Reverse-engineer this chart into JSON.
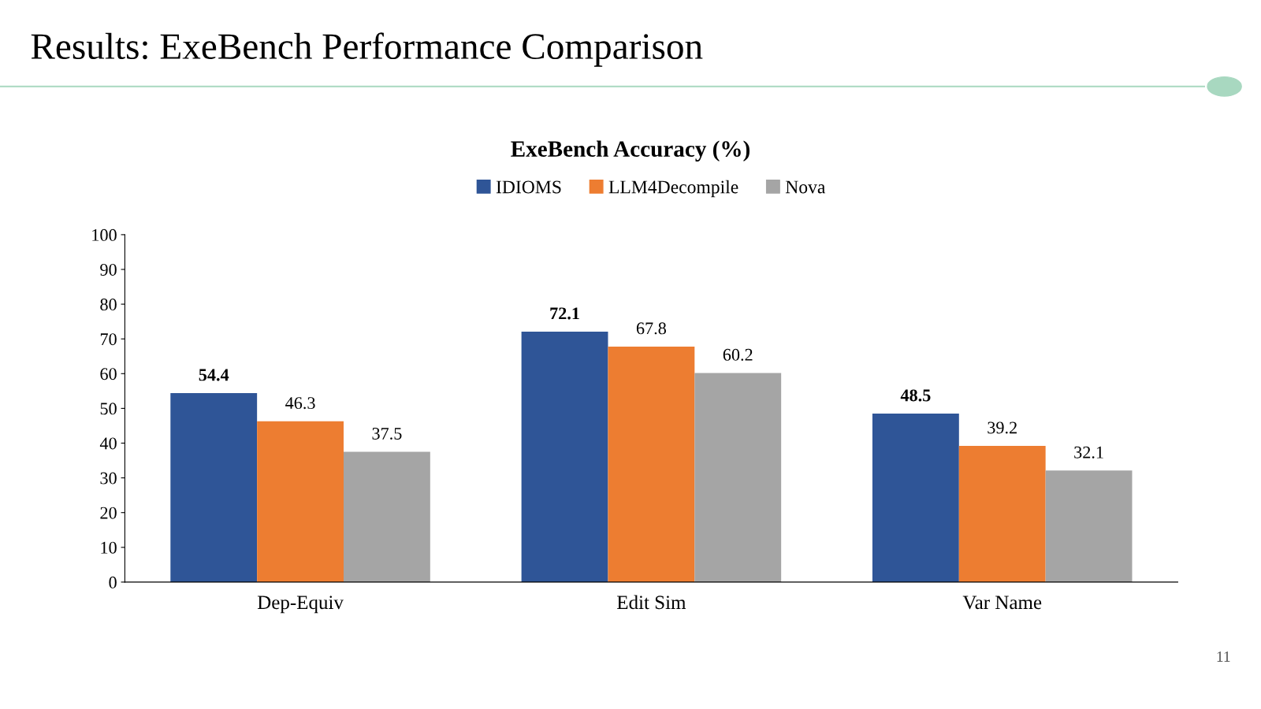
{
  "chart_data": {
    "type": "bar",
    "title": "Results: ExeBench Performance Comparison",
    "subtitle": "ExeBench Accuracy (%)",
    "categories": [
      "Dep-Equiv",
      "Edit Sim",
      "Var Name"
    ],
    "series": [
      {
        "name": "IDIOMS",
        "color": "#2f5597",
        "values": [
          54.4,
          72.1,
          48.5
        ]
      },
      {
        "name": "LLM4Decompile",
        "color": "#ed7d31",
        "values": [
          46.3,
          67.8,
          39.2
        ]
      },
      {
        "name": "Nova",
        "color": "#a5a5a5",
        "values": [
          37.5,
          60.2,
          32.1
        ]
      }
    ],
    "ylim": [
      0,
      100
    ],
    "yticks": [
      0,
      10,
      20,
      30,
      40,
      50,
      60,
      70,
      80,
      90,
      100
    ],
    "grid": false,
    "legend": "top",
    "data_labels": true,
    "annotations": [
      "11"
    ]
  }
}
